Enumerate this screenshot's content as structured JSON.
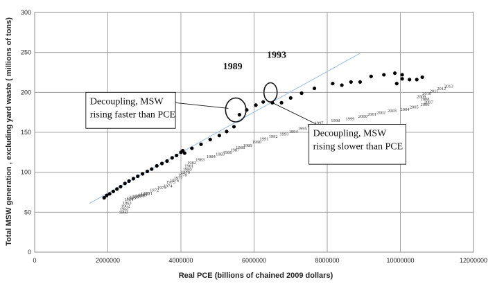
{
  "chart_data": {
    "type": "scatter",
    "title": "",
    "xlabel": "Real PCE (billions of chained 2009 dollars)",
    "ylabel": "Total MSW generation , excluding yard waste ( millions of tons)",
    "xlim": [
      0,
      12000000
    ],
    "ylim": [
      0,
      300
    ],
    "xticks": [
      0,
      2000000,
      4000000,
      6000000,
      8000000,
      10000000,
      12000000
    ],
    "yticks": [
      0,
      50,
      100,
      150,
      200,
      250,
      300
    ],
    "xtick_labels": [
      "0",
      "2000000",
      "4000000",
      "6000000",
      "8000000",
      "10000000",
      "12000000"
    ],
    "ytick_labels": [
      "0",
      "50",
      "100",
      "150",
      "200",
      "250",
      "300"
    ],
    "grid": true,
    "legend": "none",
    "series": [
      {
        "marker": "filled-circle",
        "color": "#000000",
        "points": [
          [
            1900000,
            68
          ],
          [
            1970000,
            71
          ],
          [
            2050000,
            73
          ],
          [
            2150000,
            76
          ],
          [
            2250000,
            79
          ],
          [
            2350000,
            82
          ],
          [
            2470000,
            86
          ],
          [
            2580000,
            89
          ],
          [
            2700000,
            92
          ],
          [
            2820000,
            95
          ],
          [
            2950000,
            98
          ],
          [
            3080000,
            101
          ],
          [
            3200000,
            104
          ],
          [
            3340000,
            108
          ],
          [
            3480000,
            111
          ],
          [
            3620000,
            114
          ],
          [
            3760000,
            118
          ],
          [
            3880000,
            121
          ],
          [
            4000000,
            125
          ],
          [
            4050000,
            127
          ],
          [
            4100000,
            124
          ],
          [
            4300000,
            130
          ],
          [
            4550000,
            135
          ],
          [
            4800000,
            141
          ],
          [
            5050000,
            146
          ],
          [
            5250000,
            151
          ],
          [
            5450000,
            157
          ],
          [
            5600000,
            172
          ],
          [
            5800000,
            178
          ],
          [
            6050000,
            184
          ],
          [
            6250000,
            188
          ],
          [
            6500000,
            187
          ],
          [
            6750000,
            187
          ],
          [
            7000000,
            193
          ],
          [
            7300000,
            199
          ],
          [
            7650000,
            205
          ],
          [
            8150000,
            211
          ],
          [
            8400000,
            209
          ],
          [
            8650000,
            213
          ],
          [
            8900000,
            213
          ],
          [
            9200000,
            220
          ],
          [
            9550000,
            222
          ],
          [
            9850000,
            224
          ],
          [
            9900000,
            211
          ],
          [
            10050000,
            222
          ],
          [
            10050000,
            217
          ],
          [
            10250000,
            216
          ],
          [
            10450000,
            216
          ],
          [
            10600000,
            219
          ]
        ]
      },
      {
        "name": "",
        "type": "line",
        "color": "#9ec3e4",
        "points": [
          [
            1500000,
            61
          ],
          [
            8900000,
            249
          ]
        ]
      },
      {
        "type": "labels",
        "color": "#333333",
        "labels": [
          [
            2300000,
            48,
            "1960"
          ],
          [
            2330000,
            52,
            "1961"
          ],
          [
            2360000,
            56,
            "1962"
          ],
          [
            2400000,
            60,
            "1963"
          ],
          [
            2450000,
            64,
            "1964"
          ],
          [
            2520000,
            66,
            "1965"
          ],
          [
            2600000,
            67,
            "1966"
          ],
          [
            2680000,
            68,
            "1967"
          ],
          [
            2760000,
            69,
            "1968"
          ],
          [
            2830000,
            70,
            "1969"
          ],
          [
            2900000,
            71,
            "1970"
          ],
          [
            2980000,
            72,
            "1971"
          ],
          [
            3150000,
            76,
            "1972"
          ],
          [
            3350000,
            79,
            "1973"
          ],
          [
            3520000,
            81,
            "1974"
          ],
          [
            3600000,
            86,
            "1975"
          ],
          [
            3700000,
            88,
            "1976"
          ],
          [
            3800000,
            91,
            "1977"
          ],
          [
            3920000,
            95,
            "1978"
          ],
          [
            4000000,
            98,
            "1979"
          ],
          [
            4050000,
            102,
            "1980"
          ],
          [
            4100000,
            106,
            "1981"
          ],
          [
            4170000,
            110,
            "1982"
          ],
          [
            4400000,
            114,
            "1983"
          ],
          [
            4700000,
            118,
            "1984"
          ],
          [
            4950000,
            121,
            "1985"
          ],
          [
            5150000,
            123,
            "1986"
          ],
          [
            5350000,
            126,
            "1987"
          ],
          [
            5500000,
            129,
            "1988"
          ],
          [
            5700000,
            132,
            "1989"
          ],
          [
            5950000,
            136,
            "1990"
          ],
          [
            6150000,
            140,
            "1991"
          ],
          [
            6400000,
            143,
            "1992"
          ],
          [
            6700000,
            146,
            "1993"
          ],
          [
            6950000,
            149,
            "1994"
          ],
          [
            7200000,
            153,
            "1995"
          ],
          [
            7450000,
            157,
            "1996"
          ],
          [
            7650000,
            160,
            "1997"
          ],
          [
            8100000,
            163,
            "1998"
          ],
          [
            8500000,
            165,
            "1999"
          ],
          [
            8850000,
            168,
            "2000"
          ],
          [
            9100000,
            171,
            "2001"
          ],
          [
            9350000,
            173,
            "2002"
          ],
          [
            9650000,
            175,
            "2003"
          ],
          [
            10000000,
            177,
            "2004"
          ],
          [
            10250000,
            180,
            "2005"
          ],
          [
            10550000,
            183,
            "2006"
          ],
          [
            10650000,
            186,
            "2007"
          ],
          [
            10550000,
            190,
            "2008"
          ],
          [
            10450000,
            193,
            "2009"
          ],
          [
            10600000,
            197,
            "2010"
          ],
          [
            10800000,
            200,
            "2011"
          ],
          [
            11000000,
            203,
            "2012"
          ],
          [
            11200000,
            206,
            "2013"
          ]
        ]
      }
    ],
    "annotations": [
      {
        "type": "text",
        "text": "1989",
        "x": 5150000,
        "y": 229
      },
      {
        "type": "text",
        "text": "1993",
        "x": 6350000,
        "y": 243
      },
      {
        "type": "ellipse",
        "cx": 5500000,
        "cy": 178,
        "rx": 280000,
        "ry": 15
      },
      {
        "type": "ellipse",
        "cx": 6450000,
        "cy": 200,
        "rx": 180000,
        "ry": 12
      },
      {
        "type": "callout",
        "lines": [
          "Decoupling, MSW",
          "rising faster than PCE"
        ],
        "x0": 1400000,
        "y0": 200,
        "x1": 3850000,
        "y1": 155,
        "pointer": [
          [
            3850000,
            187
          ],
          [
            5300000,
            180
          ]
        ]
      },
      {
        "type": "callout",
        "lines": [
          "Decoupling, MSW",
          "rising slower than PCE"
        ],
        "x0": 7500000,
        "y0": 160,
        "x1": 10150000,
        "y1": 110,
        "pointer": [
          [
            6500000,
            187
          ],
          [
            7800000,
            158
          ]
        ]
      }
    ]
  }
}
